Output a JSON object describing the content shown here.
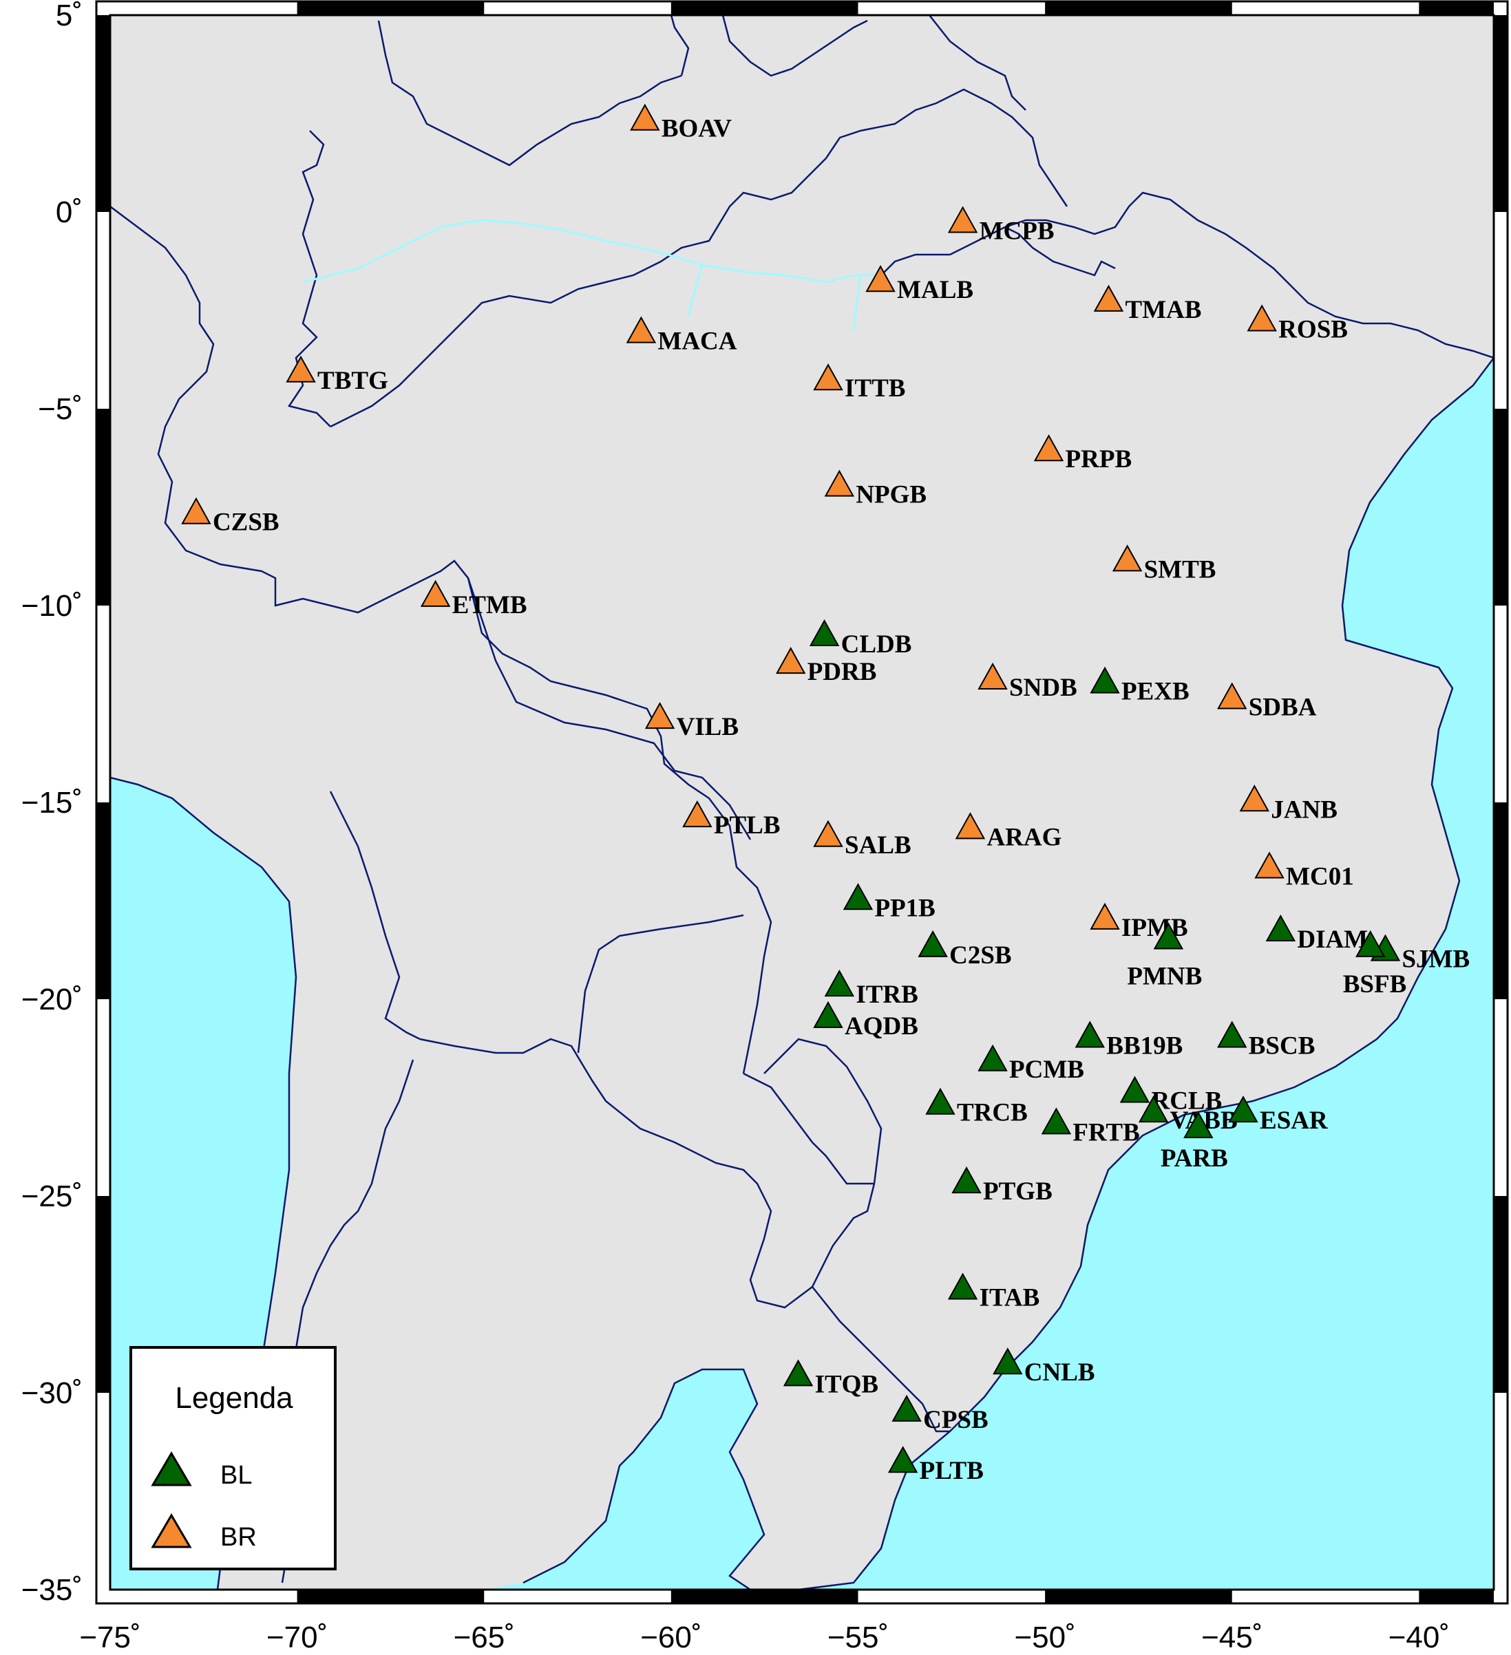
{
  "map": {
    "lon_range": [
      -75,
      -38
    ],
    "lat_range": [
      -35,
      5
    ],
    "colors": {
      "ocean": "#9ffaff",
      "land": "#e4e4e4",
      "borders": "#0a1a6e",
      "BL": "#006400",
      "BR": "#f5892f"
    }
  },
  "axes": {
    "x_ticks": [
      {
        "lon": -75,
        "label": "−75˚"
      },
      {
        "lon": -70,
        "label": "−70˚"
      },
      {
        "lon": -65,
        "label": "−65˚"
      },
      {
        "lon": -60,
        "label": "−60˚"
      },
      {
        "lon": -55,
        "label": "−55˚"
      },
      {
        "lon": -50,
        "label": "−50˚"
      },
      {
        "lon": -45,
        "label": "−45˚"
      },
      {
        "lon": -40,
        "label": "−40˚"
      }
    ],
    "y_ticks": [
      {
        "lat": 5,
        "label": "5˚"
      },
      {
        "lat": 0,
        "label": "0˚"
      },
      {
        "lat": -5,
        "label": "−5˚"
      },
      {
        "lat": -10,
        "label": "−10˚"
      },
      {
        "lat": -15,
        "label": "−15˚"
      },
      {
        "lat": -20,
        "label": "−20˚"
      },
      {
        "lat": -25,
        "label": "−25˚"
      },
      {
        "lat": -30,
        "label": "−30˚"
      },
      {
        "lat": -35,
        "label": "−35˚"
      }
    ]
  },
  "legend": {
    "title": "Legenda",
    "items": [
      {
        "type": "BL",
        "label": "BL"
      },
      {
        "type": "BR",
        "label": "BR"
      }
    ]
  },
  "stations": [
    {
      "name": "BOAV",
      "lon": -60.7,
      "lat": 2.4,
      "type": "BR"
    },
    {
      "name": "MCPB",
      "lon": -52.2,
      "lat": -0.2,
      "type": "BR"
    },
    {
      "name": "MALB",
      "lon": -54.4,
      "lat": -1.7,
      "type": "BR"
    },
    {
      "name": "TMAB",
      "lon": -48.3,
      "lat": -2.2,
      "type": "BR"
    },
    {
      "name": "ROSB",
      "lon": -44.2,
      "lat": -2.7,
      "type": "BR"
    },
    {
      "name": "MACA",
      "lon": -60.8,
      "lat": -3.0,
      "type": "BR"
    },
    {
      "name": "TBTG",
      "lon": -69.9,
      "lat": -4.0,
      "type": "BR"
    },
    {
      "name": "ITTB",
      "lon": -55.8,
      "lat": -4.2,
      "type": "BR"
    },
    {
      "name": "PRPB",
      "lon": -49.9,
      "lat": -6.0,
      "type": "BR"
    },
    {
      "name": "NPGB",
      "lon": -55.5,
      "lat": -6.9,
      "type": "BR"
    },
    {
      "name": "CZSB",
      "lon": -72.7,
      "lat": -7.6,
      "type": "BR"
    },
    {
      "name": "SMTB",
      "lon": -47.8,
      "lat": -8.8,
      "type": "BR"
    },
    {
      "name": "ETMB",
      "lon": -66.3,
      "lat": -9.7,
      "type": "BR"
    },
    {
      "name": "CLDB",
      "lon": -55.9,
      "lat": -10.7,
      "type": "BL"
    },
    {
      "name": "PDRB",
      "lon": -56.8,
      "lat": -11.4,
      "type": "BR"
    },
    {
      "name": "SNDB",
      "lon": -51.4,
      "lat": -11.8,
      "type": "BR"
    },
    {
      "name": "PEXB",
      "lon": -48.4,
      "lat": -11.9,
      "type": "BL"
    },
    {
      "name": "SDBA",
      "lon": -45.0,
      "lat": -12.3,
      "type": "BR"
    },
    {
      "name": "VILB",
      "lon": -60.3,
      "lat": -12.8,
      "type": "BR"
    },
    {
      "name": "JANB",
      "lon": -44.4,
      "lat": -14.9,
      "type": "BR"
    },
    {
      "name": "PTLB",
      "lon": -59.3,
      "lat": -15.3,
      "type": "BR"
    },
    {
      "name": "ARAG",
      "lon": -52.0,
      "lat": -15.6,
      "type": "BR"
    },
    {
      "name": "SALB",
      "lon": -55.8,
      "lat": -15.8,
      "type": "BR"
    },
    {
      "name": "MC01",
      "lon": -44.0,
      "lat": -16.6,
      "type": "BR"
    },
    {
      "name": "PP1B",
      "lon": -55.0,
      "lat": -17.4,
      "type": "BL"
    },
    {
      "name": "IPMB",
      "lon": -48.4,
      "lat": -17.9,
      "type": "BR"
    },
    {
      "name": "DIAM",
      "lon": -43.7,
      "lat": -18.2,
      "type": "BL"
    },
    {
      "name": "PMNB",
      "lon": -46.7,
      "lat": -18.4,
      "type": "BL"
    },
    {
      "name": "C2SB",
      "lon": -53.0,
      "lat": -18.6,
      "type": "BL"
    },
    {
      "name": "SJMB",
      "lon": -40.9,
      "lat": -18.7,
      "type": "BL"
    },
    {
      "name": "BSFB",
      "lon": -41.3,
      "lat": -18.6,
      "type": "BL"
    },
    {
      "name": "ITRB",
      "lon": -55.5,
      "lat": -19.6,
      "type": "BL"
    },
    {
      "name": "AQDB",
      "lon": -55.8,
      "lat": -20.4,
      "type": "BL"
    },
    {
      "name": "BB19B",
      "lon": -48.8,
      "lat": -20.9,
      "type": "BL"
    },
    {
      "name": "BSCB",
      "lon": -45.0,
      "lat": -20.9,
      "type": "BL"
    },
    {
      "name": "PCMB",
      "lon": -51.4,
      "lat": -21.5,
      "type": "BL"
    },
    {
      "name": "RCLB",
      "lon": -47.6,
      "lat": -22.3,
      "type": "BL"
    },
    {
      "name": "TRCB",
      "lon": -52.8,
      "lat": -22.6,
      "type": "BL"
    },
    {
      "name": "VABB",
      "lon": -47.1,
      "lat": -22.8,
      "type": "BL"
    },
    {
      "name": "ESAR",
      "lon": -44.7,
      "lat": -22.8,
      "type": "BL"
    },
    {
      "name": "FRTB",
      "lon": -49.7,
      "lat": -23.1,
      "type": "BL"
    },
    {
      "name": "PARB",
      "lon": -45.9,
      "lat": -23.2,
      "type": "BL"
    },
    {
      "name": "PTGB",
      "lon": -52.1,
      "lat": -24.6,
      "type": "BL"
    },
    {
      "name": "ITAB",
      "lon": -52.2,
      "lat": -27.3,
      "type": "BL"
    },
    {
      "name": "CNLB",
      "lon": -51.0,
      "lat": -29.2,
      "type": "BL"
    },
    {
      "name": "ITQB",
      "lon": -56.6,
      "lat": -29.5,
      "type": "BL"
    },
    {
      "name": "CPSB",
      "lon": -53.7,
      "lat": -30.4,
      "type": "BL"
    },
    {
      "name": "PLTB",
      "lon": -53.8,
      "lat": -31.7,
      "type": "BL"
    }
  ]
}
